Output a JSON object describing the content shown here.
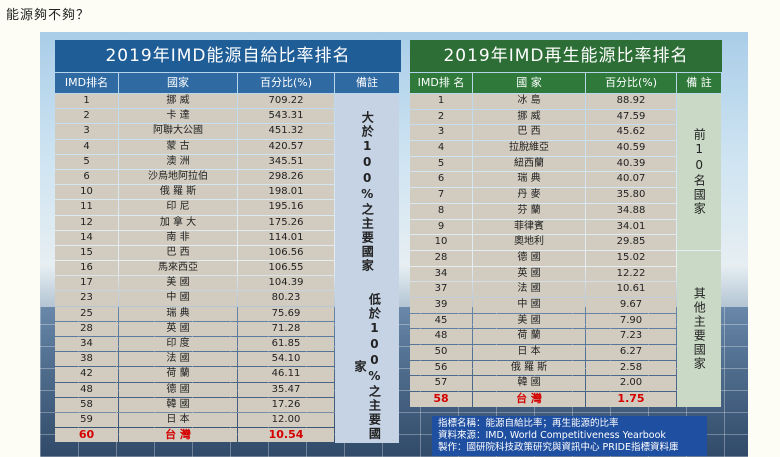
{
  "page": {
    "title": "能源夠不夠？"
  },
  "left": {
    "title": "2019年IMD能源自給比率排名",
    "headers": [
      "IMD排名",
      "國家",
      "百分比(%)",
      "備註"
    ],
    "notes": [
      "大於100%之主要國家",
      "低於100%之主要國家"
    ],
    "group1": [
      [
        "1",
        "挪 威",
        "709.22"
      ],
      [
        "2",
        "卡 達",
        "543.31"
      ],
      [
        "3",
        "阿聯大公國",
        "451.32"
      ],
      [
        "4",
        "蒙 古",
        "420.57"
      ],
      [
        "5",
        "澳 洲",
        "345.51"
      ],
      [
        "6",
        "沙烏地阿拉伯",
        "298.26"
      ],
      [
        "10",
        "俄 羅 斯",
        "198.01"
      ],
      [
        "11",
        "印 尼",
        "195.16"
      ],
      [
        "12",
        "加 拿 大",
        "175.26"
      ],
      [
        "14",
        "南 非",
        "114.01"
      ],
      [
        "15",
        "巴 西",
        "106.56"
      ],
      [
        "16",
        "馬來西亞",
        "106.55"
      ],
      [
        "17",
        "美 國",
        "104.39"
      ]
    ],
    "group2": [
      [
        "23",
        "中 國",
        "80.23"
      ],
      [
        "25",
        "瑞 典",
        "75.69"
      ],
      [
        "28",
        "英 國",
        "71.28"
      ],
      [
        "34",
        "印 度",
        "61.85"
      ],
      [
        "38",
        "法 國",
        "54.10"
      ],
      [
        "42",
        "荷 蘭",
        "46.11"
      ],
      [
        "48",
        "德 國",
        "35.47"
      ],
      [
        "58",
        "韓 國",
        "17.26"
      ],
      [
        "59",
        "日 本",
        "12.00"
      ],
      [
        "60",
        "台 灣",
        "10.54"
      ]
    ]
  },
  "right": {
    "title": "2019年IMD再生能源比率排名",
    "headers": [
      "IMD排 名",
      "國 家",
      "百分比(%)",
      "備 註"
    ],
    "notes": [
      "前10名國家",
      "其他主要國家"
    ],
    "group1": [
      [
        "1",
        "冰 島",
        "88.92"
      ],
      [
        "2",
        "挪 威",
        "47.59"
      ],
      [
        "3",
        "巴 西",
        "45.62"
      ],
      [
        "4",
        "拉脫維亞",
        "40.59"
      ],
      [
        "5",
        "紐西蘭",
        "40.39"
      ],
      [
        "6",
        "瑞 典",
        "40.07"
      ],
      [
        "7",
        "丹 麥",
        "35.80"
      ],
      [
        "8",
        "芬 蘭",
        "34.88"
      ],
      [
        "9",
        "菲律賓",
        "34.01"
      ],
      [
        "10",
        "奧地利",
        "29.85"
      ]
    ],
    "group2": [
      [
        "28",
        "德 國",
        "15.02"
      ],
      [
        "34",
        "英 國",
        "12.22"
      ],
      [
        "37",
        "法 國",
        "10.61"
      ],
      [
        "39",
        "中 國",
        "9.67"
      ],
      [
        "45",
        "美 國",
        "7.90"
      ],
      [
        "48",
        "荷 蘭",
        "7.23"
      ],
      [
        "50",
        "日 本",
        "6.27"
      ],
      [
        "56",
        "俄 羅 斯",
        "2.58"
      ],
      [
        "57",
        "韓 國",
        "2.00"
      ],
      [
        "58",
        "台 灣",
        "1.75"
      ]
    ]
  },
  "footer": {
    "lines": [
      "指標名稱：能源自給比率；再生能源的比率",
      "資料來源：IMD, World Competitiveness Yearbook",
      "製作：國研院科技政策研究與資訊中心 PRIDE指標資料庫"
    ]
  },
  "colors": {
    "left_title_bg": "#1f5d97",
    "right_title_bg": "#2c6e35",
    "highlight": "#d40000",
    "footer_bg": "#1f4fa0"
  }
}
